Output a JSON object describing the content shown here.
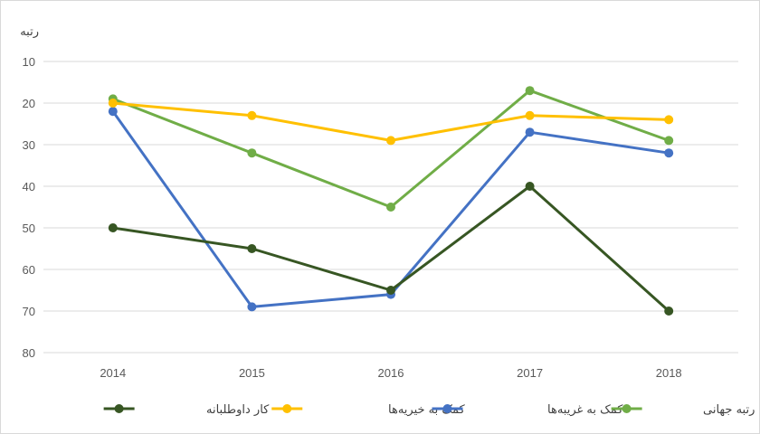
{
  "chart_data": {
    "type": "line",
    "title": "",
    "xlabel": "",
    "ylabel": "رتبه",
    "categories": [
      "2014",
      "2015",
      "2016",
      "2017",
      "2018"
    ],
    "y_ticks": [
      "10",
      "20",
      "30",
      "40",
      "50",
      "60",
      "70",
      "80"
    ],
    "ylim": [
      10,
      80
    ],
    "y_reversed": true,
    "grid": true,
    "legend_position": "bottom",
    "series": [
      {
        "name": "رتبه جهانی",
        "color": "#70ad47",
        "values": [
          19,
          32,
          45,
          17,
          29
        ]
      },
      {
        "name": "کمک به غریبه‌ها",
        "color": "#4472c4",
        "values": [
          22,
          69,
          66,
          27,
          32
        ]
      },
      {
        "name": "کمک به خیریه‌ها",
        "color": "#ffc000",
        "values": [
          20,
          23,
          29,
          23,
          24
        ]
      },
      {
        "name": "کار داوطلبانه",
        "color": "#375623",
        "values": [
          50,
          55,
          65,
          40,
          70
        ]
      }
    ]
  }
}
